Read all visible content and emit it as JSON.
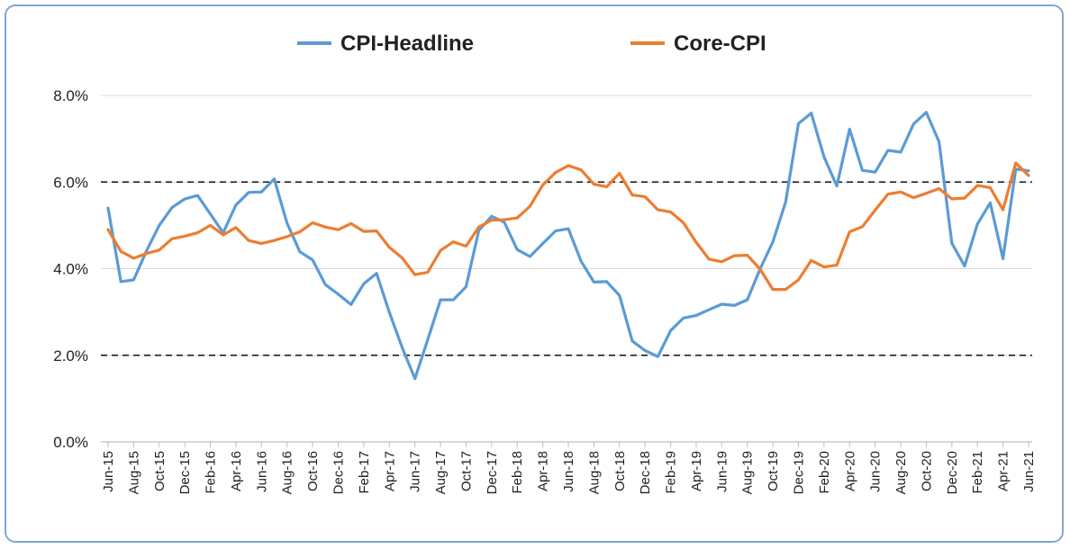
{
  "chart_data": {
    "type": "line",
    "x": [
      "Jun-15",
      "Jul-15",
      "Aug-15",
      "Sep-15",
      "Oct-15",
      "Nov-15",
      "Dec-15",
      "Jan-16",
      "Feb-16",
      "Mar-16",
      "Apr-16",
      "May-16",
      "Jun-16",
      "Jul-16",
      "Aug-16",
      "Sep-16",
      "Oct-16",
      "Nov-16",
      "Dec-16",
      "Jan-17",
      "Feb-17",
      "Mar-17",
      "Apr-17",
      "May-17",
      "Jun-17",
      "Jul-17",
      "Aug-17",
      "Sep-17",
      "Oct-17",
      "Nov-17",
      "Dec-17",
      "Jan-18",
      "Feb-18",
      "Mar-18",
      "Apr-18",
      "May-18",
      "Jun-18",
      "Jul-18",
      "Aug-18",
      "Sep-18",
      "Oct-18",
      "Nov-18",
      "Dec-18",
      "Jan-19",
      "Feb-19",
      "Mar-19",
      "Apr-19",
      "May-19",
      "Jun-19",
      "Jul-19",
      "Aug-19",
      "Sep-19",
      "Oct-19",
      "Nov-19",
      "Dec-19",
      "Jan-20",
      "Feb-20",
      "Mar-20",
      "Apr-20",
      "May-20",
      "Jun-20",
      "Jul-20",
      "Aug-20",
      "Sep-20",
      "Oct-20",
      "Nov-20",
      "Dec-20",
      "Jan-21",
      "Feb-21",
      "Mar-21",
      "Apr-21",
      "May-21",
      "Jun-21"
    ],
    "x_tick_labels": [
      "Jun-15",
      "Aug-15",
      "Oct-15",
      "Dec-15",
      "Feb-16",
      "Apr-16",
      "Jun-16",
      "Aug-16",
      "Oct-16",
      "Dec-16",
      "Feb-17",
      "Apr-17",
      "Jun-17",
      "Aug-17",
      "Oct-17",
      "Dec-17",
      "Feb-18",
      "Apr-18",
      "Jun-18",
      "Aug-18",
      "Oct-18",
      "Dec-18",
      "Feb-19",
      "Apr-19",
      "Jun-19",
      "Aug-19",
      "Oct-19",
      "Dec-19",
      "Feb-20",
      "Apr-20",
      "Jun-20",
      "Aug-20",
      "Oct-20",
      "Dec-20",
      "Feb-21",
      "Apr-21",
      "Jun-21"
    ],
    "series": [
      {
        "name": "CPI-Headline",
        "color": "#5b9bd5",
        "values": [
          5.4,
          3.7,
          3.74,
          4.41,
          5.0,
          5.41,
          5.61,
          5.69,
          5.26,
          4.83,
          5.47,
          5.76,
          5.77,
          6.07,
          5.05,
          4.39,
          4.2,
          3.63,
          3.41,
          3.17,
          3.65,
          3.89,
          2.99,
          2.18,
          1.46,
          2.36,
          3.28,
          3.28,
          3.58,
          4.88,
          5.21,
          5.07,
          4.44,
          4.28,
          4.58,
          4.87,
          4.92,
          4.17,
          3.69,
          3.7,
          3.38,
          2.33,
          2.11,
          1.97,
          2.57,
          2.86,
          2.92,
          3.05,
          3.18,
          3.15,
          3.28,
          3.99,
          4.62,
          5.54,
          7.35,
          7.59,
          6.58,
          5.91,
          7.22,
          6.27,
          6.23,
          6.73,
          6.69,
          7.34,
          7.61,
          6.93,
          4.59,
          4.06,
          5.03,
          5.52,
          4.23,
          6.3,
          6.26
        ]
      },
      {
        "name": "Core-CPI",
        "color": "#ed7d31",
        "values": [
          4.9,
          4.4,
          4.24,
          4.35,
          4.43,
          4.69,
          4.75,
          4.83,
          5.0,
          4.78,
          4.95,
          4.65,
          4.58,
          4.65,
          4.74,
          4.85,
          5.06,
          4.96,
          4.9,
          5.04,
          4.86,
          4.87,
          4.49,
          4.25,
          3.86,
          3.92,
          4.42,
          4.62,
          4.52,
          4.96,
          5.12,
          5.13,
          5.17,
          5.44,
          5.93,
          6.22,
          6.38,
          6.28,
          5.95,
          5.89,
          6.2,
          5.7,
          5.66,
          5.36,
          5.31,
          5.06,
          4.61,
          4.22,
          4.16,
          4.3,
          4.31,
          3.99,
          3.52,
          3.52,
          3.74,
          4.19,
          4.04,
          4.08,
          4.85,
          4.97,
          5.35,
          5.72,
          5.77,
          5.64,
          5.74,
          5.85,
          5.61,
          5.63,
          5.92,
          5.87,
          5.36,
          6.44,
          6.15
        ]
      }
    ],
    "ylim": [
      0,
      8
    ],
    "y_ticks": [
      "0.0%",
      "2.0%",
      "4.0%",
      "6.0%",
      "8.0%"
    ],
    "y_tick_values": [
      0,
      2,
      4,
      6,
      8
    ],
    "reference_lines": [
      2,
      6
    ],
    "grid": true,
    "legend_position": "top-center",
    "title": "",
    "xlabel": "",
    "ylabel": ""
  }
}
